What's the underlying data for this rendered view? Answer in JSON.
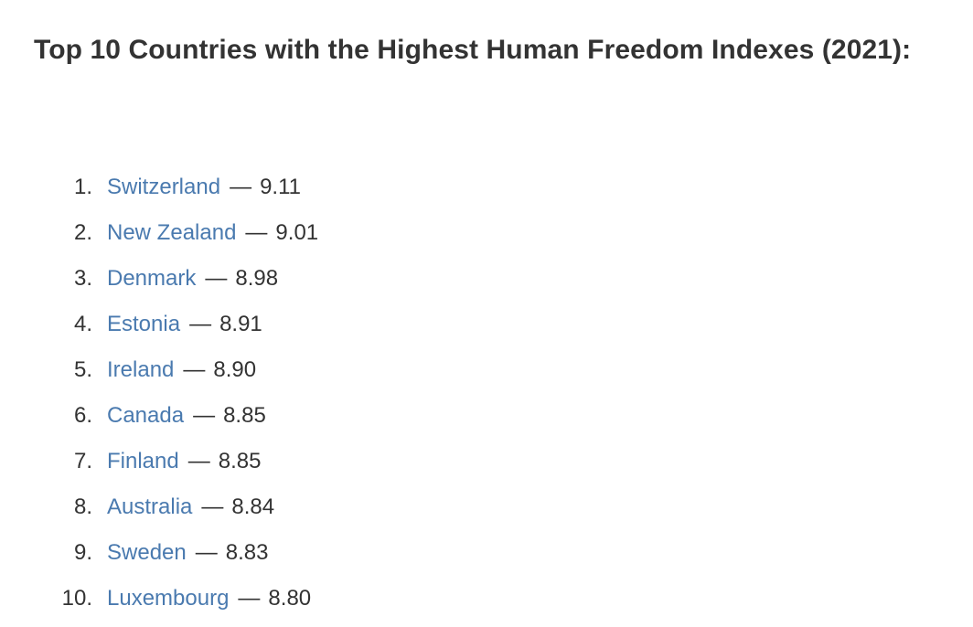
{
  "article": {
    "title": "Top 10 Countries with the Highest Human Freedom Indexes (2021):",
    "separator": "—",
    "link_color": "#4a7aaf",
    "text_color": "#333333",
    "items": [
      {
        "rank": "1.",
        "country": "Switzerland",
        "score": "9.11"
      },
      {
        "rank": "2.",
        "country": "New Zealand",
        "score": "9.01"
      },
      {
        "rank": "3.",
        "country": "Denmark",
        "score": "8.98"
      },
      {
        "rank": "4.",
        "country": "Estonia",
        "score": "8.91"
      },
      {
        "rank": "5.",
        "country": "Ireland",
        "score": "8.90"
      },
      {
        "rank": "6.",
        "country": "Canada",
        "score": "8.85"
      },
      {
        "rank": "7.",
        "country": "Finland",
        "score": "8.85"
      },
      {
        "rank": "8.",
        "country": "Australia",
        "score": "8.84"
      },
      {
        "rank": "9.",
        "country": "Sweden",
        "score": "8.83"
      },
      {
        "rank": "10.",
        "country": "Luxembourg",
        "score": "8.80"
      }
    ]
  }
}
